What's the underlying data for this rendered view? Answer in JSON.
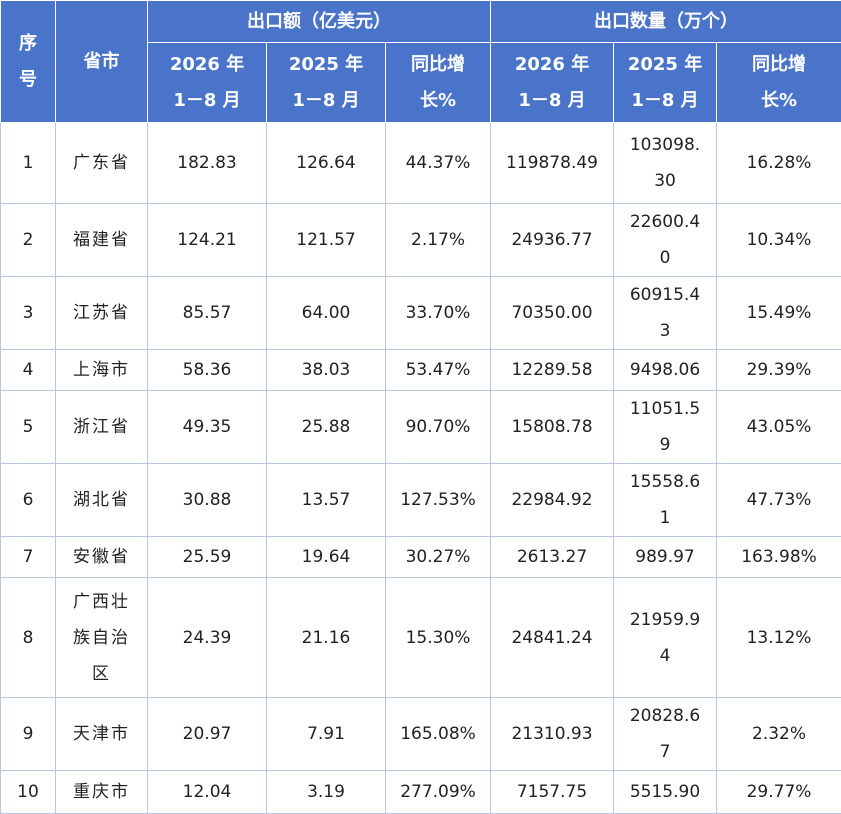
{
  "header": {
    "index": "序号",
    "region": "省市",
    "groups": [
      "出口额（亿美元）",
      "出口数量（万个）"
    ],
    "sub": [
      "2026 年 1－8 月",
      "2025 年 1－8 月",
      "同比增长%",
      "2026 年 1－8 月",
      "2025 年 1－8 月",
      "同比增长%"
    ]
  },
  "table": {
    "rows": [
      [
        "1",
        "广东省",
        "182.83",
        "126.64",
        "44.37%",
        "119878.49",
        "103098.30",
        "16.28%"
      ],
      [
        "2",
        "福建省",
        "124.21",
        "121.57",
        "2.17%",
        "24936.77",
        "22600.40",
        "10.34%"
      ],
      [
        "3",
        "江苏省",
        "85.57",
        "64.00",
        "33.70%",
        "70350.00",
        "60915.43",
        "15.49%"
      ],
      [
        "4",
        "上海市",
        "58.36",
        "38.03",
        "53.47%",
        "12289.58",
        "9498.06",
        "29.39%"
      ],
      [
        "5",
        "浙江省",
        "49.35",
        "25.88",
        "90.70%",
        "15808.78",
        "11051.59",
        "43.05%"
      ],
      [
        "6",
        "湖北省",
        "30.88",
        "13.57",
        "127.53%",
        "22984.92",
        "15558.61",
        "47.73%"
      ],
      [
        "7",
        "安徽省",
        "25.59",
        "19.64",
        "30.27%",
        "2613.27",
        "989.97",
        "163.98%"
      ],
      [
        "8",
        "广西壮族自治区",
        "24.39",
        "21.16",
        "15.30%",
        "24841.24",
        "21959.94",
        "13.12%"
      ],
      [
        "9",
        "天津市",
        "20.97",
        "7.91",
        "165.08%",
        "21310.93",
        "20828.67",
        "2.32%"
      ],
      [
        "10",
        "重庆市",
        "12.04",
        "3.19",
        "277.09%",
        "7157.75",
        "5515.90",
        "29.77%"
      ]
    ]
  }
}
